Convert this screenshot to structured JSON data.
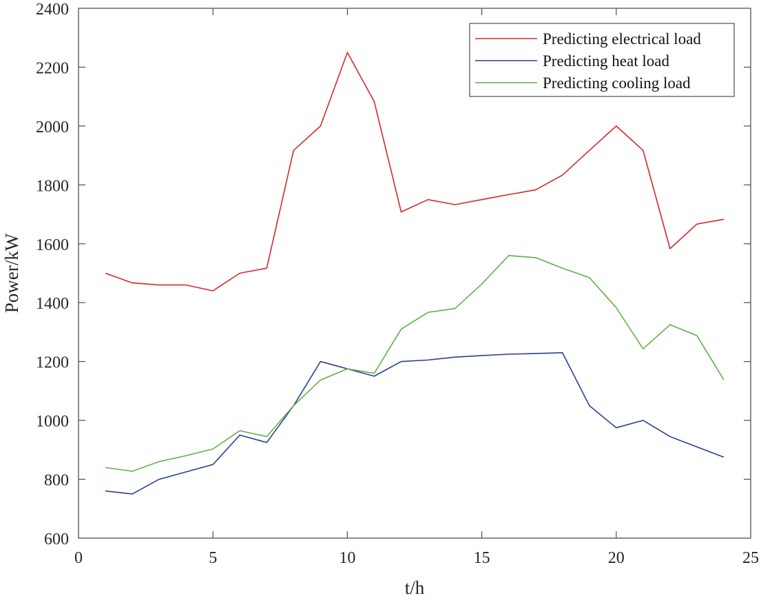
{
  "chart_data": {
    "type": "line",
    "title": "",
    "xlabel": "t/h",
    "ylabel": "Power/kW",
    "xlim": [
      0,
      25
    ],
    "ylim": [
      600,
      2400
    ],
    "xticks": [
      0,
      5,
      10,
      15,
      20,
      25
    ],
    "yticks": [
      600,
      800,
      1000,
      1200,
      1400,
      1600,
      1800,
      2000,
      2200,
      2400
    ],
    "grid": false,
    "legend_position": "upper right",
    "x": [
      1,
      2,
      3,
      4,
      5,
      6,
      7,
      8,
      9,
      10,
      11,
      12,
      13,
      14,
      15,
      16,
      17,
      18,
      19,
      20,
      21,
      22,
      23,
      24
    ],
    "series": [
      {
        "name": "Predicting electrical load",
        "color": "#d7262b",
        "values": [
          1500,
          1467,
          1460,
          1460,
          1440,
          1500,
          1517,
          1917,
          2000,
          2250,
          2083,
          1708,
          1750,
          1733,
          1750,
          1767,
          1783,
          1833,
          1917,
          2000,
          1917,
          1583,
          1667,
          1683
        ]
      },
      {
        "name": "Predicting heat load",
        "color": "#2a3f93",
        "values": [
          760,
          750,
          800,
          825,
          850,
          950,
          925,
          1050,
          1200,
          1175,
          1150,
          1200,
          1205,
          1215,
          1220,
          1225,
          1227,
          1230,
          1050,
          975,
          1000,
          945,
          910,
          875
        ]
      },
      {
        "name": "Predicting cooling load",
        "color": "#5cb246",
        "values": [
          840,
          827,
          860,
          880,
          903,
          965,
          945,
          1050,
          1137,
          1175,
          1160,
          1310,
          1367,
          1380,
          1463,
          1560,
          1553,
          1517,
          1485,
          1383,
          1243,
          1325,
          1288,
          1138
        ]
      }
    ]
  }
}
